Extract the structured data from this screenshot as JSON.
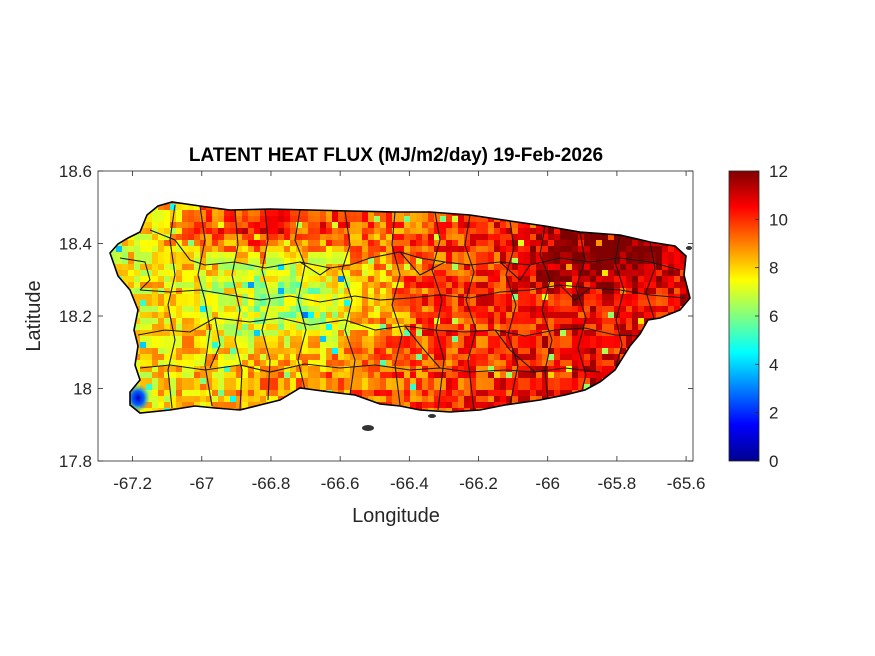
{
  "chart_data": {
    "type": "heatmap",
    "title": "LATENT HEAT FLUX (MJ/m2/day) 19-Feb-2026",
    "xlabel": "Longitude",
    "ylabel": "Latitude",
    "xlim": [
      -67.3,
      -65.58
    ],
    "ylim": [
      17.8,
      18.6
    ],
    "x_ticks": [
      -67.2,
      -67,
      -66.8,
      -66.6,
      -66.4,
      -66.2,
      -66,
      -65.8,
      -65.6
    ],
    "x_tick_labels": [
      "-67.2",
      "-67",
      "-66.8",
      "-66.6",
      "-66.4",
      "-66.2",
      "-66",
      "-65.8",
      "-65.6"
    ],
    "y_ticks": [
      17.8,
      18,
      18.2,
      18.4,
      18.6
    ],
    "y_tick_labels": [
      "17.8",
      "18",
      "18.2",
      "18.4",
      "18.6"
    ],
    "colorbar": {
      "colormap": "jet",
      "range": [
        0,
        12
      ],
      "ticks": [
        0,
        2,
        4,
        6,
        8,
        10,
        12
      ],
      "tick_labels": [
        "0",
        "2",
        "4",
        "6",
        "8",
        "10",
        "12"
      ],
      "colors": [
        "#00008f",
        "#0000ff",
        "#0080ff",
        "#00ffff",
        "#80ff80",
        "#ffff00",
        "#ff8000",
        "#ff0000",
        "#800000"
      ]
    },
    "map_region": "Puerto Rico",
    "municipality_boundaries": true,
    "field_summary": {
      "west_and_southwest": 7.5,
      "central_mountains": 8,
      "north_and_east": 10.5,
      "northeast_peak": 11.5,
      "southwest_coast_min": 1
    }
  }
}
